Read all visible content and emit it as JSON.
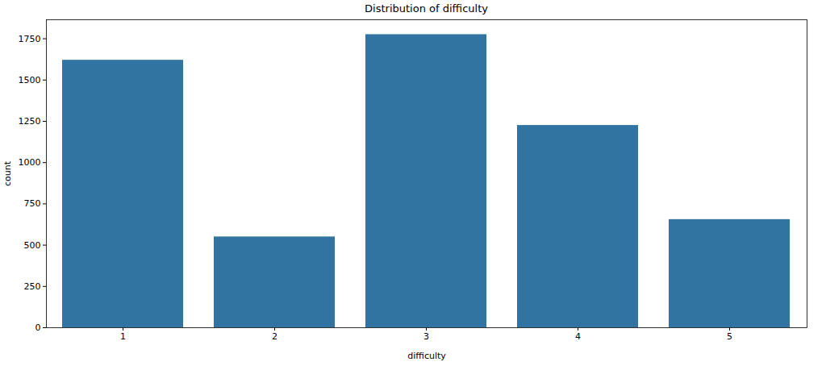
{
  "chart_data": {
    "type": "bar",
    "title": "Distribution of difficulty",
    "x_label": "difficulty",
    "y_label": "count",
    "categories": [
      "1",
      "2",
      "3",
      "4",
      "5"
    ],
    "values": [
      1620,
      550,
      1775,
      1225,
      655
    ],
    "color": "#3274a1",
    "ylim": [
      0,
      1865
    ],
    "yticks": [
      0,
      250,
      500,
      750,
      1000,
      1250,
      1500,
      1750
    ],
    "grid": false
  }
}
